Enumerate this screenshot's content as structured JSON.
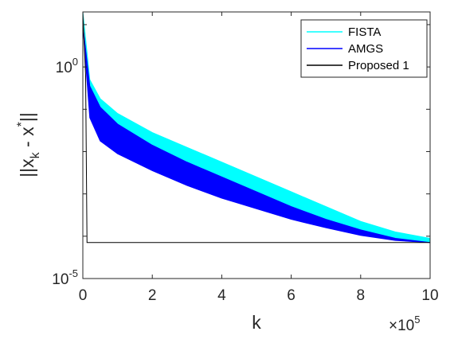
{
  "chart_data": {
    "type": "line",
    "title": "",
    "xlabel": "k",
    "ylabel": "||x_k - x^*||",
    "ylabel_parts": {
      "open": "||x",
      "sub": "k",
      "mid": " - x",
      "sup": "*",
      "close": "||"
    },
    "x_scale_multiplier": "×10^5",
    "x_multiplier_parts": {
      "base": "×10",
      "exp": "5"
    },
    "xlim": [
      0,
      1000000
    ],
    "ylim_log10": [
      -5,
      1.3
    ],
    "y_scale": "log",
    "grid": false,
    "legend_position": "top-right",
    "x_ticks": [
      {
        "value": 0,
        "label": "0"
      },
      {
        "value": 200000,
        "label": "2"
      },
      {
        "value": 400000,
        "label": "4"
      },
      {
        "value": 600000,
        "label": "6"
      },
      {
        "value": 800000,
        "label": "8"
      },
      {
        "value": 1000000,
        "label": "10"
      }
    ],
    "y_ticks": [
      {
        "log10": 0,
        "base": "10",
        "exp": "0"
      },
      {
        "log10": -5,
        "base": "10",
        "exp": "-5"
      }
    ],
    "series": [
      {
        "name": "FISTA",
        "color": "#00ffff",
        "style": "oscillating band",
        "upper": {
          "x": [
            0,
            20000,
            50000,
            100000,
            200000,
            300000,
            400000,
            500000,
            600000,
            700000,
            800000,
            900000,
            1000000
          ],
          "y_log10": [
            1.3,
            -0.3,
            -0.75,
            -1.1,
            -1.55,
            -1.9,
            -2.25,
            -2.6,
            -2.95,
            -3.3,
            -3.65,
            -3.9,
            -4.05
          ]
        },
        "lower": {
          "x": [
            0,
            20000,
            50000,
            100000,
            200000,
            300000,
            400000,
            500000,
            600000,
            700000,
            800000,
            900000,
            1000000
          ],
          "y_log10": [
            1.3,
            -0.45,
            -0.95,
            -1.35,
            -1.85,
            -2.25,
            -2.6,
            -2.95,
            -3.3,
            -3.6,
            -3.85,
            -4.05,
            -4.15
          ]
        }
      },
      {
        "name": "AMGS",
        "color": "#0000ff",
        "style": "oscillating band",
        "upper": {
          "x": [
            0,
            20000,
            50000,
            100000,
            200000,
            300000,
            400000,
            500000,
            600000,
            700000,
            800000,
            900000,
            1000000
          ],
          "y_log10": [
            1.0,
            -0.45,
            -0.95,
            -1.35,
            -1.85,
            -2.25,
            -2.6,
            -2.95,
            -3.3,
            -3.6,
            -3.85,
            -4.05,
            -4.15
          ]
        },
        "lower": {
          "x": [
            0,
            20000,
            50000,
            100000,
            200000,
            300000,
            400000,
            500000,
            600000,
            700000,
            800000,
            900000,
            1000000
          ],
          "y_log10": [
            1.0,
            -1.2,
            -1.75,
            -2.05,
            -2.45,
            -2.8,
            -3.1,
            -3.35,
            -3.6,
            -3.8,
            -3.98,
            -4.1,
            -4.15
          ]
        }
      },
      {
        "name": "Proposed 1",
        "color": "#000000",
        "style": "line",
        "x": [
          0,
          8000,
          12000,
          1000000
        ],
        "y_log10": [
          1.3,
          -0.2,
          -4.15,
          -4.15
        ]
      }
    ]
  }
}
